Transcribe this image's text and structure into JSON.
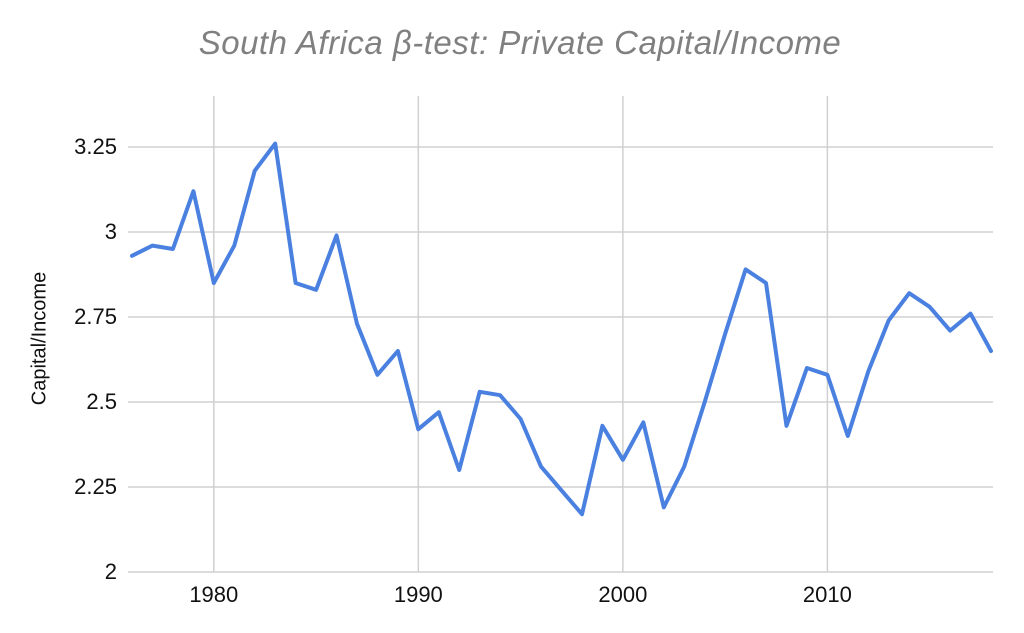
{
  "chart_data": {
    "type": "line",
    "title": "South Africa β-test: Private Capital/Income",
    "ylabel": "Capital/Income",
    "xlabel": "",
    "x": [
      1976,
      1977,
      1978,
      1979,
      1980,
      1981,
      1982,
      1983,
      1984,
      1985,
      1986,
      1987,
      1988,
      1989,
      1990,
      1991,
      1992,
      1993,
      1994,
      1995,
      1996,
      1997,
      1998,
      1999,
      2000,
      2001,
      2002,
      2003,
      2004,
      2005,
      2006,
      2007,
      2008,
      2009,
      2010,
      2011,
      2012,
      2013,
      2014,
      2015,
      2016,
      2017,
      2018
    ],
    "series": [
      {
        "name": "Capital/Income",
        "values": [
          2.93,
          2.96,
          2.95,
          3.12,
          2.85,
          2.96,
          3.18,
          3.26,
          2.85,
          2.83,
          2.99,
          2.73,
          2.58,
          2.65,
          2.42,
          2.47,
          2.3,
          2.53,
          2.52,
          2.45,
          2.31,
          2.24,
          2.17,
          2.43,
          2.33,
          2.44,
          2.19,
          2.31,
          2.5,
          2.7,
          2.89,
          2.85,
          2.43,
          2.6,
          2.58,
          2.4,
          2.59,
          2.74,
          2.82,
          2.78,
          2.71,
          2.76,
          2.65
        ]
      }
    ],
    "yticks": [
      2,
      2.25,
      2.5,
      2.75,
      3,
      3.25
    ],
    "ytick_labels": [
      "2",
      "2.25",
      "2.5",
      "2.75",
      "3",
      "3.25"
    ],
    "xticks": [
      1980,
      1990,
      2000,
      2010
    ],
    "xtick_labels": [
      "1980",
      "1990",
      "2000",
      "2010"
    ],
    "xlim": [
      1976,
      2018
    ],
    "ylim": [
      2,
      3.4
    ],
    "grid": true,
    "legend": "none",
    "colors": {
      "line": "#4a80e0",
      "grid": "#d0d0d0",
      "title": "#808080",
      "tick_text": "#111111",
      "background": "#ffffff"
    }
  }
}
